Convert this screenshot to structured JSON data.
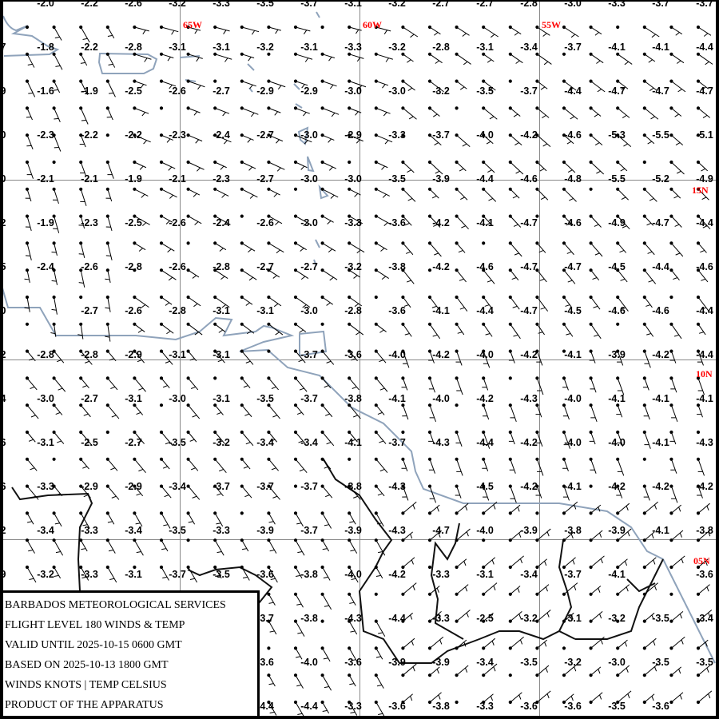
{
  "legend": {
    "lines": [
      "BARBADOS METEOROLOGICAL SERVICES",
      "FLIGHT LEVEL 180 WINDS & TEMP",
      "VALID UNTIL 2025-10-15 0600 GMT",
      "BASED ON 2025-10-13 1800 GMT",
      "WINDS KNOTS | TEMP CELSIUS",
      "PRODUCT OF THE APPARATUS"
    ]
  },
  "grid_labels": {
    "longitudes": [
      "65W",
      "60W",
      "55W"
    ],
    "latitudes": [
      "15N",
      "10N",
      "05N"
    ],
    "label_color": "#ff0000"
  },
  "colors": {
    "coastline": "#8fa3bb",
    "border": "#111111",
    "gridline": "#888888"
  },
  "left_edge_fragments": [
    "3",
    ".7",
    ".9",
    ".0",
    ".0",
    ".2",
    ".5",
    ".0",
    ".2",
    ".4",
    ".6",
    ".6",
    ".2",
    ".9"
  ],
  "temperatures": [
    [
      "-2.0",
      "-2.2",
      "-2.6",
      "-3.2",
      "-3.3",
      "-3.5",
      "-3.7",
      "-3.1",
      "-3.2",
      "-2.7",
      "-2.7",
      "-2.8",
      "-3.0",
      "-3.3",
      "-3.7",
      "-3.7"
    ],
    [
      "-1.8",
      "-2.2",
      "-2.8",
      "-3.1",
      "-3.1",
      "-3.2",
      "-3.1",
      "-3.3",
      "-3.2",
      "-2.8",
      "-3.1",
      "-3.4",
      "-3.7",
      "-4.1",
      "-4.1",
      "-4.4"
    ],
    [
      "-1.6",
      "-1.9",
      "-2.5",
      "-2.6",
      "-2.7",
      "-2.9",
      "-2.9",
      "-3.0",
      "-3.0",
      "-3.2",
      "-3.5",
      "-3.7",
      "-4.4",
      "-4.7",
      "-4.7",
      "-4.7"
    ],
    [
      "-2.3",
      "-2.2",
      "-2.2",
      "-2.3",
      "-2.4",
      "-2.7",
      "-3.0",
      "-2.9",
      "-3.3",
      "-3.7",
      "-4.0",
      "-4.2",
      "-4.6",
      "-5.3",
      "-5.5",
      "-5.1"
    ],
    [
      "-2.1",
      "-2.1",
      "-1.9",
      "-2.1",
      "-2.3",
      "-2.7",
      "-3.0",
      "-3.0",
      "-3.5",
      "-3.9",
      "-4.4",
      "-4.6",
      "-4.8",
      "-5.5",
      "-5.2",
      "-4.9"
    ],
    [
      "-1.9",
      "-2.3",
      "-2.5",
      "-2.6",
      "-2.4",
      "-2.6",
      "-3.0",
      "-3.3",
      "-3.6",
      "-4.2",
      "-4.1",
      "-4.7",
      "-4.6",
      "-4.9",
      "-4.7",
      "-4.4"
    ],
    [
      "-2.4",
      "-2.6",
      "-2.8",
      "-2.6",
      "-2.8",
      "-2.7",
      "-2.7",
      "-3.2",
      "-3.8",
      "-4.2",
      "-4.6",
      "-4.7",
      "-4.7",
      "-4.5",
      "-4.4",
      "-4.6"
    ],
    [
      null,
      "-2.7",
      "-2.6",
      "-2.8",
      "-3.1",
      "-3.1",
      "-3.0",
      "-2.8",
      "-3.6",
      "-4.1",
      "-4.4",
      "-4.7",
      "-4.5",
      "-4.6",
      "-4.6",
      "-4.4"
    ],
    [
      "-2.8",
      "-2.8",
      "-2.9",
      "-3.1",
      "-3.1",
      null,
      "-3.7",
      "-3.6",
      "-4.0",
      "-4.2",
      "-4.0",
      "-4.2",
      "-4.1",
      "-3.9",
      "-4.2",
      "-4.4"
    ],
    [
      "-3.0",
      "-2.7",
      "-3.1",
      "-3.0",
      "-3.1",
      "-3.5",
      "-3.7",
      "-3.8",
      "-4.1",
      "-4.0",
      "-4.2",
      "-4.3",
      "-4.0",
      "-4.1",
      "-4.1",
      "-4.1"
    ],
    [
      "-3.1",
      "-2.5",
      "-2.7",
      "-3.5",
      "-3.2",
      "-3.4",
      "-3.4",
      "-4.1",
      "-3.7",
      "-4.3",
      "-4.4",
      "-4.2",
      "-4.0",
      "-4.0",
      "-4.1",
      "-4.3"
    ],
    [
      "-3.3",
      "-2.9",
      "-2.9",
      "-3.4",
      "-3.7",
      "-3.7",
      "-3.7",
      "-3.8",
      "-4.3",
      null,
      "-4.5",
      "-4.2",
      "-4.1",
      "-4.2",
      "-4.2",
      "-4.2"
    ],
    [
      "-3.4",
      "-3.3",
      "-3.4",
      "-3.5",
      "-3.3",
      "-3.9",
      "-3.7",
      "-3.9",
      "-4.3",
      "-4.7",
      "-4.0",
      "-3.9",
      "-3.8",
      "-3.9",
      "-4.1",
      "-3.8"
    ],
    [
      "-3.2",
      "-3.3",
      "-3.1",
      "-3.7",
      "-3.5",
      "-3.6",
      "-3.8",
      "-4.0",
      "-4.2",
      "-3.3",
      "-3.1",
      "-3.4",
      "-3.7",
      "-4.1",
      null,
      "-3.6"
    ],
    [
      null,
      null,
      null,
      null,
      null,
      "-3.7",
      "-3.8",
      "-4.3",
      "-4.4",
      "-3.3",
      "-2.5",
      "-3.2",
      "-3.1",
      "-3.2",
      "-3.5",
      "-3.4"
    ],
    [
      null,
      null,
      null,
      null,
      null,
      "-3.6",
      "-4.0",
      "-3.6",
      "-3.9",
      "-3.9",
      "-3.4",
      "-3.5",
      "-3.2",
      "-3.0",
      "-3.5",
      "-3.5"
    ],
    [
      null,
      null,
      null,
      null,
      null,
      "-4.4",
      "-4.4",
      "-3.3",
      "-3.6",
      "-3.8",
      "-3.3",
      "-3.6",
      "-3.6",
      "-3.5",
      "-3.6",
      null
    ]
  ]
}
